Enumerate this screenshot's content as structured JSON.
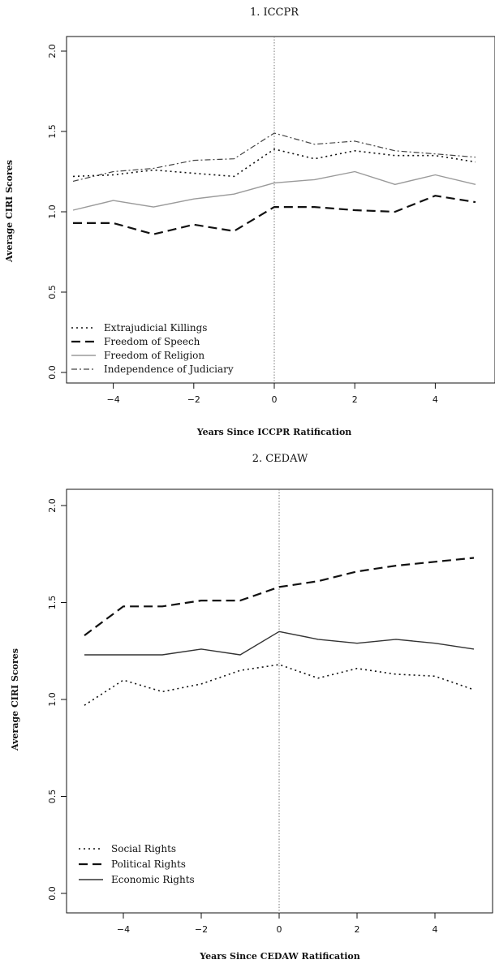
{
  "chart_data": [
    {
      "type": "line",
      "title": "1. ICCPR",
      "xlabel": "Years Since ICCPR Ratification",
      "ylabel": "Average CIRI Scores",
      "xlim": [
        -5,
        5
      ],
      "ylim": [
        0,
        2
      ],
      "x_ticks": [
        -4,
        -2,
        0,
        2,
        4
      ],
      "y_ticks": [
        0,
        0.5,
        1,
        1.5,
        2
      ],
      "x_tick_labels": [
        "−4",
        "−2",
        "0",
        "2",
        "4"
      ],
      "y_tick_labels": [
        "0.0",
        "0.5",
        "1.0",
        "1.5",
        "2.0"
      ],
      "vline_x": 0,
      "legend_position": "bottom-left",
      "x": [
        -5,
        -4,
        -3,
        -2,
        -1,
        0,
        1,
        2,
        3,
        4,
        5
      ],
      "series": [
        {
          "name": "Extrajudicial Killings",
          "style": "dotted",
          "color": "#111111",
          "values": [
            1.22,
            1.23,
            1.26,
            1.24,
            1.22,
            1.39,
            1.33,
            1.38,
            1.35,
            1.35,
            1.31
          ]
        },
        {
          "name": "Freedom of Speech",
          "style": "dashed",
          "color": "#111111",
          "values": [
            0.93,
            0.93,
            0.86,
            0.92,
            0.88,
            1.03,
            1.03,
            1.01,
            1.0,
            1.1,
            1.06
          ]
        },
        {
          "name": "Freedom of Religion",
          "style": "solid-light",
          "color": "#9a9a9a",
          "values": [
            1.01,
            1.07,
            1.03,
            1.08,
            1.11,
            1.18,
            1.2,
            1.25,
            1.17,
            1.23,
            1.17
          ]
        },
        {
          "name": "Independence of Judiciary",
          "style": "dashdot",
          "color": "#444444",
          "values": [
            1.19,
            1.25,
            1.27,
            1.32,
            1.33,
            1.49,
            1.42,
            1.44,
            1.38,
            1.36,
            1.34
          ]
        }
      ]
    },
    {
      "type": "line",
      "title": "2. CEDAW",
      "xlabel": "Years Since CEDAW Ratification",
      "ylabel": "Average CIRI Scores",
      "xlim": [
        -5,
        5
      ],
      "ylim": [
        0,
        2
      ],
      "x_ticks": [
        -4,
        -2,
        0,
        2,
        4
      ],
      "y_ticks": [
        0,
        0.5,
        1,
        1.5,
        2
      ],
      "x_tick_labels": [
        "−4",
        "−2",
        "0",
        "2",
        "4"
      ],
      "y_tick_labels": [
        "0.0",
        "0.5",
        "1.0",
        "1.5",
        "2.0"
      ],
      "vline_x": 0,
      "legend_position": "bottom-left",
      "x": [
        -5,
        -4,
        -3,
        -2,
        -1,
        0,
        1,
        2,
        3,
        4,
        5
      ],
      "series": [
        {
          "name": "Social Rights",
          "style": "dotted",
          "color": "#111111",
          "values": [
            0.97,
            1.1,
            1.04,
            1.08,
            1.15,
            1.18,
            1.11,
            1.16,
            1.13,
            1.12,
            1.05
          ]
        },
        {
          "name": "Political Rights",
          "style": "dashed",
          "color": "#111111",
          "values": [
            1.33,
            1.48,
            1.48,
            1.51,
            1.51,
            1.58,
            1.61,
            1.66,
            1.69,
            1.71,
            1.73
          ]
        },
        {
          "name": "Economic Rights",
          "style": "solid",
          "color": "#333333",
          "values": [
            1.23,
            1.23,
            1.23,
            1.26,
            1.23,
            1.35,
            1.31,
            1.29,
            1.31,
            1.29,
            1.26
          ]
        }
      ]
    }
  ]
}
